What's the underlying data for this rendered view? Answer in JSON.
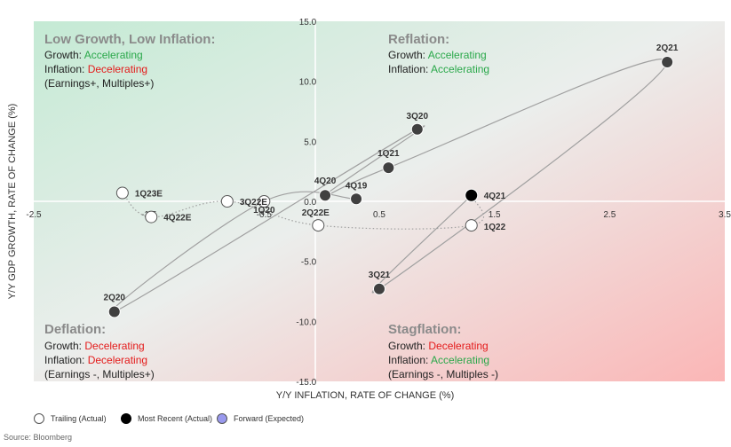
{
  "chart_data": {
    "type": "scatter",
    "xlabel": "Y/Y INFLATION, RATE OF CHANGE (%)",
    "ylabel": "Y/Y GDP GROWTH, RATE OF CHANGE (%)",
    "xlim": [
      -2.5,
      3.5
    ],
    "ylim": [
      -15.0,
      15.0
    ],
    "x_ticks": [
      "-2.5",
      "-1.5",
      "-0.5",
      "0.5",
      "1.5",
      "2.5",
      "3.5"
    ],
    "y_ticks": [
      "15.0",
      "10.0",
      "5.0",
      "0.0",
      "-5.0",
      "-10.0",
      "-15.0"
    ],
    "grid": false,
    "points": [
      {
        "label": "4Q19",
        "x": 0.3,
        "y": 0.2,
        "kind": "trailing"
      },
      {
        "label": "1Q20",
        "x": -0.5,
        "y": 0.0,
        "kind": "trailing"
      },
      {
        "label": "2Q20",
        "x": -1.8,
        "y": -9.2,
        "kind": "trailing"
      },
      {
        "label": "3Q20",
        "x": 0.83,
        "y": 6.0,
        "kind": "trailing"
      },
      {
        "label": "4Q20",
        "x": 0.03,
        "y": 0.5,
        "kind": "trailing"
      },
      {
        "label": "1Q21",
        "x": 0.58,
        "y": 2.8,
        "kind": "trailing"
      },
      {
        "label": "2Q21",
        "x": 3.0,
        "y": 11.6,
        "kind": "trailing"
      },
      {
        "label": "3Q21",
        "x": 0.5,
        "y": -7.3,
        "kind": "trailing"
      },
      {
        "label": "4Q21",
        "x": 1.3,
        "y": 0.5,
        "kind": "most_recent"
      },
      {
        "label": "1Q22",
        "x": 1.3,
        "y": -2.0,
        "kind": "trailing"
      },
      {
        "label": "2Q22E",
        "x": -0.03,
        "y": -2.0,
        "kind": "trailing"
      },
      {
        "label": "3Q22E",
        "x": -0.82,
        "y": 0.0,
        "kind": "trailing"
      },
      {
        "label": "4Q22E",
        "x": -1.48,
        "y": -1.3,
        "kind": "trailing"
      },
      {
        "label": "1Q23E",
        "x": -1.73,
        "y": 0.7,
        "kind": "trailing"
      }
    ],
    "solid_path": [
      "4Q19",
      "1Q20",
      "2Q20",
      "3Q20",
      "4Q20",
      "1Q21",
      "2Q21",
      "3Q21",
      "4Q21"
    ],
    "dotted_path": [
      "4Q21",
      "1Q22",
      "2Q22E",
      "3Q22E",
      "4Q22E",
      "1Q23E"
    ],
    "legend": [
      {
        "label": "Trailing (Actual)",
        "kind": "trailing"
      },
      {
        "label": "Most Recent (Actual)",
        "kind": "most_recent"
      },
      {
        "label": "Forward (Expected)",
        "kind": "forward"
      }
    ],
    "legend_placement": "bottom-left",
    "colors": {
      "trailing_fill": "#404040",
      "trailing_open_fill": "#ffffff",
      "most_recent_fill": "#000000",
      "forward_fill": "#9999ee",
      "line": "#a0a0a0",
      "green_quadrant": "#c4ead4",
      "red_quadrant": "#fbc0c0",
      "text_green": "#2aa84a",
      "text_red": "#e41a1a"
    },
    "quadrants": {
      "top_left": {
        "title": "Low Growth, Low Inflation:",
        "growth_label": "Growth: ",
        "growth_value": "Accelerating",
        "inflation_label": "Inflation: ",
        "inflation_value": "Decelerating",
        "extra": "(Earnings+, Multiples+)"
      },
      "top_right": {
        "title": "Reflation:",
        "growth_label": "Growth: ",
        "growth_value": "Accelerating",
        "inflation_label": "Inflation: ",
        "inflation_value": "Accelerating",
        "extra": ""
      },
      "bottom_left": {
        "title": "Deflation:",
        "growth_label": "Growth: ",
        "growth_value": "Decelerating",
        "inflation_label": "Inflation: ",
        "inflation_value": "Decelerating",
        "extra": "(Earnings -, Multiples+)"
      },
      "bottom_right": {
        "title": "Stagflation:",
        "growth_label": "Growth: ",
        "growth_value": "Decelerating",
        "inflation_label": "Inflation: ",
        "inflation_value": "Accelerating",
        "extra": "(Earnings -, Multiples -)"
      }
    }
  },
  "source": "Source: Bloomberg"
}
